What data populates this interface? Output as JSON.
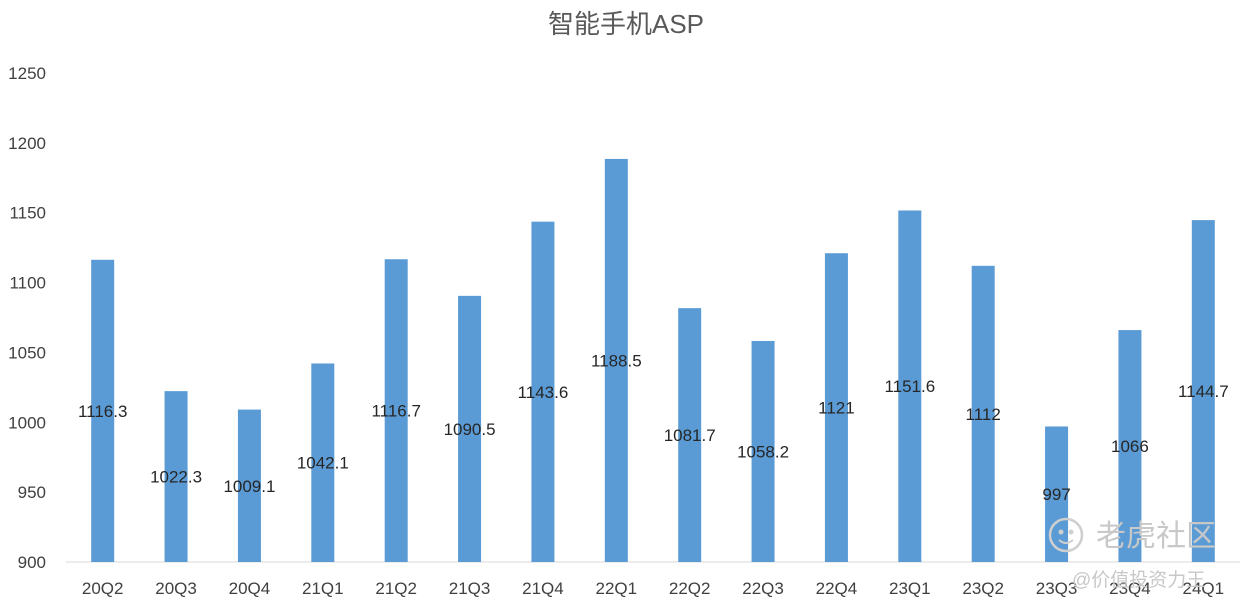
{
  "chart_data": {
    "type": "bar",
    "title": "智能手机ASP",
    "xlabel": "",
    "ylabel": "",
    "ylim": [
      900,
      1250
    ],
    "yticks": [
      900,
      950,
      1000,
      1050,
      1100,
      1150,
      1200,
      1250
    ],
    "categories": [
      "20Q2",
      "20Q3",
      "20Q4",
      "21Q1",
      "21Q2",
      "21Q3",
      "21Q4",
      "22Q1",
      "22Q2",
      "22Q3",
      "22Q4",
      "23Q1",
      "23Q2",
      "23Q3",
      "23Q4",
      "24Q1"
    ],
    "values": [
      1116.3,
      1022.3,
      1009.1,
      1042.1,
      1116.7,
      1090.5,
      1143.6,
      1188.5,
      1081.7,
      1058.2,
      1121,
      1151.6,
      1112,
      997,
      1066,
      1144.7
    ],
    "data_labels": [
      "1116.3",
      "1022.3",
      "1009.1",
      "1042.1",
      "1116.7",
      "1090.5",
      "1143.6",
      "1188.5",
      "1081.7",
      "1058.2",
      "1121",
      "1151.6",
      "1112",
      "997",
      "1066",
      "1144.7"
    ],
    "bar_color": "#5b9bd5",
    "grid": false,
    "legend": "none"
  },
  "watermark": {
    "main": "老虎社区",
    "sub": "@价值投资力王"
  }
}
